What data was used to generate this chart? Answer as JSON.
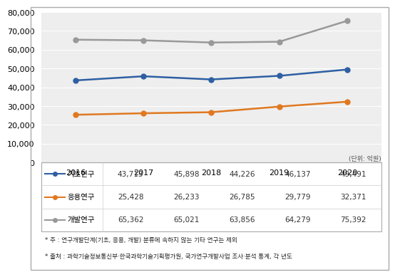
{
  "years": [
    2016,
    2017,
    2018,
    2019,
    2020
  ],
  "series": [
    {
      "label": "기초연구",
      "values": [
        43713,
        45898,
        44226,
        46137,
        49491
      ],
      "color": "#2E5FA3",
      "marker": "o"
    },
    {
      "label": "응용연구",
      "values": [
        25428,
        26233,
        26785,
        29779,
        32371
      ],
      "color": "#E07820",
      "marker": "o"
    },
    {
      "label": "개발연구",
      "values": [
        65362,
        65021,
        63856,
        64279,
        75392
      ],
      "color": "#999999",
      "marker": "o"
    }
  ],
  "ylim": [
    0,
    80000
  ],
  "yticks": [
    0,
    10000,
    20000,
    30000,
    40000,
    50000,
    60000,
    70000,
    80000
  ],
  "table_values": [
    [
      "43,713",
      "45,898",
      "44,226",
      "46,137",
      "49,491"
    ],
    [
      "25,428",
      "26,233",
      "26,785",
      "29,779",
      "32,371"
    ],
    [
      "65,362",
      "65,021",
      "63,856",
      "64,279",
      "75,392"
    ]
  ],
  "unit_text": "(단위: 억원)",
  "footnote1": "* 주 : 연구개발단계(기초, 응용, 개발) 분류에 속하지 않는 기타 연구는 제외",
  "footnote2": "* 출처 : 과학기술정보통신부·한국과학기술기획평가원, 국가연구개발사업 조사·분석 통계, 각 년도",
  "plot_bg_color": "#eeeeee",
  "outer_bg": "#ffffff"
}
